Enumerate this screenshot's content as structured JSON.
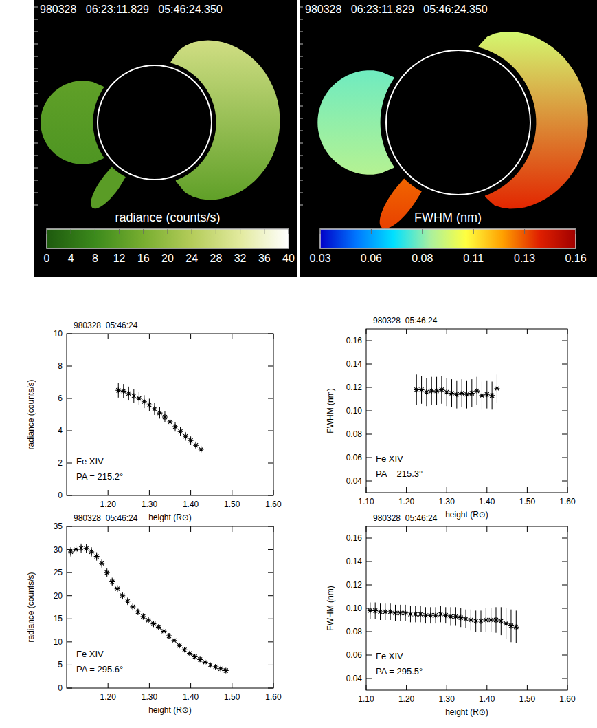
{
  "chart_data": [
    {
      "type": "image",
      "title": "980328   06:23:11.829   05:46:24.350",
      "colorbar_label": "radiance (counts/s)",
      "colorbar_range": [
        0,
        40
      ],
      "colorbar_ticks": [
        0,
        4,
        8,
        12,
        16,
        20,
        24,
        28,
        32,
        36,
        40
      ],
      "colors": [
        "#1e5a0e",
        "#3c8a1c",
        "#78ae30",
        "#b4cc5a",
        "#e2ea9e",
        "#ffffff"
      ]
    },
    {
      "type": "image",
      "title": "980328   06:23:11.829   05:46:24.350",
      "colorbar_label": "FWHM (nm)",
      "colorbar_range": [
        0.03,
        0.16
      ],
      "colorbar_ticks": [
        0.03,
        {
          "value": 0.056,
          "label": "0.06"
        },
        {
          "value": 0.082,
          "label": "0.08"
        },
        {
          "value": 0.108,
          "label": "0.11"
        },
        {
          "value": 0.134,
          "label": "0.13"
        },
        0.16
      ],
      "colors": [
        "#0000c8",
        "#0078ff",
        "#00e0ff",
        "#a8f0a0",
        "#ffff40",
        "#ffa000",
        "#e02000",
        "#a00000"
      ]
    },
    {
      "type": "scatter",
      "title": "980328  05:46:24",
      "x_label": "height (R⊙)",
      "y_label": "radiance (counts/s)",
      "annotations": [
        "Fe XIV",
        "PA = 215.2°"
      ],
      "marker": "star",
      "xlim": [
        1.1,
        1.6
      ],
      "xticks": [
        {
          "value": 1.2,
          "label": "1.20"
        },
        {
          "value": 1.3,
          "label": "1.30"
        },
        {
          "value": 1.4,
          "label": "1.40"
        },
        {
          "value": 1.5,
          "label": "1.50"
        },
        {
          "value": 1.6,
          "label": "1.60"
        }
      ],
      "ylim": [
        0,
        10
      ],
      "yticks": [
        0,
        2,
        4,
        6,
        8,
        10
      ],
      "x": [
        1.225,
        1.2375,
        1.25,
        1.2625,
        1.275,
        1.2875,
        1.3,
        1.3125,
        1.325,
        1.3375,
        1.35,
        1.3625,
        1.375,
        1.3875,
        1.4,
        1.4125,
        1.425
      ],
      "values": [
        6.5,
        6.45,
        6.3,
        6.15,
        6.0,
        5.8,
        5.6,
        5.35,
        5.1,
        4.85,
        4.55,
        4.25,
        3.95,
        3.65,
        3.4,
        3.1,
        2.85
      ],
      "errors": [
        0.45,
        0.44,
        0.43,
        0.42,
        0.41,
        0.4,
        0.38,
        0.37,
        0.35,
        0.34,
        0.32,
        0.3,
        0.28,
        0.27,
        0.25,
        0.23,
        0.22
      ]
    },
    {
      "type": "scatter",
      "title": "980328  05:46:24",
      "x_label": "height (R⊙)",
      "y_label": "FWHM (nm)",
      "annotations": [
        "Fe XIV",
        "PA = 215.3°"
      ],
      "marker": "star",
      "xlim": [
        1.1,
        1.6
      ],
      "xticks": [
        {
          "value": 1.1,
          "label": "1.10"
        },
        {
          "value": 1.2,
          "label": "1.20"
        },
        {
          "value": 1.3,
          "label": "1.30"
        },
        {
          "value": 1.4,
          "label": "1.40"
        },
        {
          "value": 1.5,
          "label": "1.50"
        },
        {
          "value": 1.6,
          "label": "1.60"
        }
      ],
      "ylim": [
        0.03,
        0.17
      ],
      "yticks": [
        0.04,
        0.06,
        0.08,
        {
          "value": 0.1,
          "label": "0.10"
        },
        0.12,
        0.14,
        0.16
      ],
      "x": [
        1.225,
        1.2375,
        1.25,
        1.2625,
        1.275,
        1.2875,
        1.3,
        1.3125,
        1.325,
        1.3375,
        1.35,
        1.3625,
        1.375,
        1.3875,
        1.4,
        1.4125,
        1.425
      ],
      "values": [
        0.118,
        0.118,
        0.116,
        0.117,
        0.117,
        0.118,
        0.116,
        0.115,
        0.114,
        0.115,
        0.114,
        0.115,
        0.117,
        0.113,
        0.114,
        0.113,
        0.119
      ],
      "errors": [
        0.013,
        0.012,
        0.012,
        0.012,
        0.012,
        0.012,
        0.012,
        0.012,
        0.012,
        0.012,
        0.012,
        0.012,
        0.012,
        0.012,
        0.012,
        0.012,
        0.012
      ]
    },
    {
      "type": "scatter",
      "title": "980328  05:46:24",
      "x_label": "height (R⊙)",
      "y_label": "radiance (counts/s)",
      "annotations": [
        "Fe XIV",
        "PA = 295.6°"
      ],
      "marker": "star",
      "xlim": [
        1.1,
        1.6
      ],
      "xticks": [
        {
          "value": 1.2,
          "label": "1.20"
        },
        {
          "value": 1.3,
          "label": "1.30"
        },
        {
          "value": 1.4,
          "label": "1.40"
        },
        {
          "value": 1.5,
          "label": "1.50"
        },
        {
          "value": 1.6,
          "label": "1.60"
        }
      ],
      "ylim": [
        0,
        35
      ],
      "yticks": [
        0,
        5,
        10,
        15,
        20,
        25,
        30,
        35
      ],
      "x": [
        1.11,
        1.1225,
        1.135,
        1.1475,
        1.16,
        1.1725,
        1.185,
        1.1975,
        1.21,
        1.2225,
        1.235,
        1.2475,
        1.26,
        1.2725,
        1.285,
        1.2975,
        1.31,
        1.3225,
        1.335,
        1.3475,
        1.36,
        1.3725,
        1.385,
        1.3975,
        1.41,
        1.4225,
        1.435,
        1.4475,
        1.46,
        1.4725,
        1.485
      ],
      "values": [
        29.5,
        30,
        30.3,
        30.2,
        29.5,
        28.5,
        27,
        25,
        23,
        21.5,
        20,
        18.8,
        17.6,
        16.5,
        15.5,
        14.7,
        13.9,
        13.2,
        12.3,
        11.3,
        10.3,
        9.2,
        8.3,
        7.5,
        6.8,
        6.2,
        5.6,
        5.0,
        4.6,
        4.2,
        3.8
      ],
      "errors": [
        1.0,
        1.0,
        1.0,
        1.0,
        1.0,
        0.9,
        0.9,
        0.9,
        0.9,
        0.8,
        0.8,
        0.8,
        0.8,
        0.7,
        0.7,
        0.7,
        0.7,
        0.6,
        0.6,
        0.6,
        0.6,
        0.5,
        0.5,
        0.5,
        0.5,
        0.5,
        0.4,
        0.4,
        0.4,
        0.4,
        0.4
      ]
    },
    {
      "type": "scatter",
      "title": "980328  05:46:24",
      "x_label": "height (R⊙)",
      "y_label": "FWHM (nm)",
      "annotations": [
        "Fe XIV",
        "PA = 295.5°"
      ],
      "marker": "star",
      "xlim": [
        1.1,
        1.6
      ],
      "xticks": [
        {
          "value": 1.1,
          "label": "1.10"
        },
        {
          "value": 1.2,
          "label": "1.20"
        },
        {
          "value": 1.3,
          "label": "1.30"
        },
        {
          "value": 1.4,
          "label": "1.40"
        },
        {
          "value": 1.5,
          "label": "1.50"
        },
        {
          "value": 1.6,
          "label": "1.60"
        }
      ],
      "ylim": [
        0.03,
        0.17
      ],
      "yticks": [
        0.04,
        0.06,
        0.08,
        {
          "value": 0.1,
          "label": "0.10"
        },
        0.12,
        0.14,
        0.16
      ],
      "x": [
        1.11,
        1.1225,
        1.135,
        1.1475,
        1.16,
        1.1725,
        1.185,
        1.1975,
        1.21,
        1.2225,
        1.235,
        1.2475,
        1.26,
        1.2725,
        1.285,
        1.2975,
        1.31,
        1.3225,
        1.335,
        1.3475,
        1.36,
        1.3725,
        1.385,
        1.3975,
        1.41,
        1.4225,
        1.435,
        1.4475,
        1.46,
        1.4725
      ],
      "values": [
        0.098,
        0.098,
        0.097,
        0.097,
        0.097,
        0.096,
        0.096,
        0.096,
        0.095,
        0.095,
        0.095,
        0.094,
        0.094,
        0.094,
        0.095,
        0.094,
        0.093,
        0.093,
        0.092,
        0.091,
        0.09,
        0.089,
        0.089,
        0.09,
        0.09,
        0.09,
        0.089,
        0.087,
        0.085,
        0.084
      ],
      "errors": [
        0.007,
        0.007,
        0.007,
        0.007,
        0.007,
        0.007,
        0.007,
        0.007,
        0.007,
        0.007,
        0.007,
        0.007,
        0.007,
        0.007,
        0.007,
        0.007,
        0.008,
        0.008,
        0.008,
        0.008,
        0.009,
        0.009,
        0.009,
        0.01,
        0.01,
        0.011,
        0.012,
        0.013,
        0.014,
        0.014
      ]
    }
  ]
}
